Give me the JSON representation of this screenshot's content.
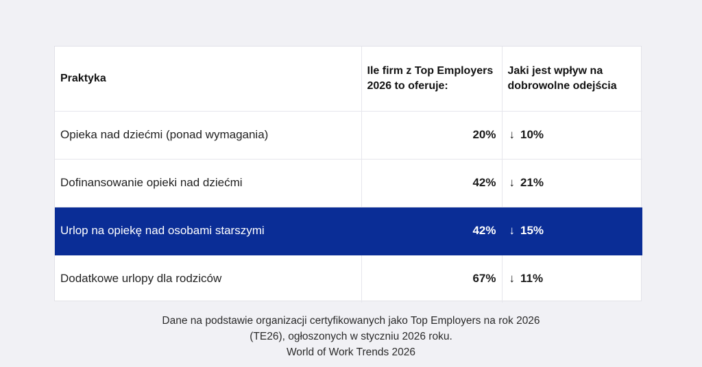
{
  "table": {
    "headers": {
      "practice": "Praktyka",
      "share": "Ile firm z Top Employers 2026 to oferuje:",
      "impact": "Jaki jest wpływ na dobrowolne odejścia"
    },
    "rows": [
      {
        "practice": "Opieka nad dziećmi (ponad wymagania)",
        "share": "20%",
        "impact": "10%",
        "arrow": "↓",
        "highlighted": false
      },
      {
        "practice": "Dofinansowanie opieki nad dziećmi",
        "share": "42%",
        "impact": "21%",
        "arrow": "↓",
        "highlighted": false
      },
      {
        "practice": "Urlop na opiekę nad osobami starszymi",
        "share": "42%",
        "impact": "15%",
        "arrow": "↓",
        "highlighted": true
      },
      {
        "practice": "Dodatkowe urlopy dla rodziców",
        "share": "67%",
        "impact": "11%",
        "arrow": "↓",
        "highlighted": false
      }
    ],
    "highlight_color": "#0a2d96"
  },
  "footnote": {
    "line1": "Dane na podstawie organizacji certyfikowanych jako Top Employers na rok 2026",
    "line2": "(TE26), ogłoszonych w styczniu 2026 roku.",
    "line3": "World of Work Trends 2026"
  }
}
